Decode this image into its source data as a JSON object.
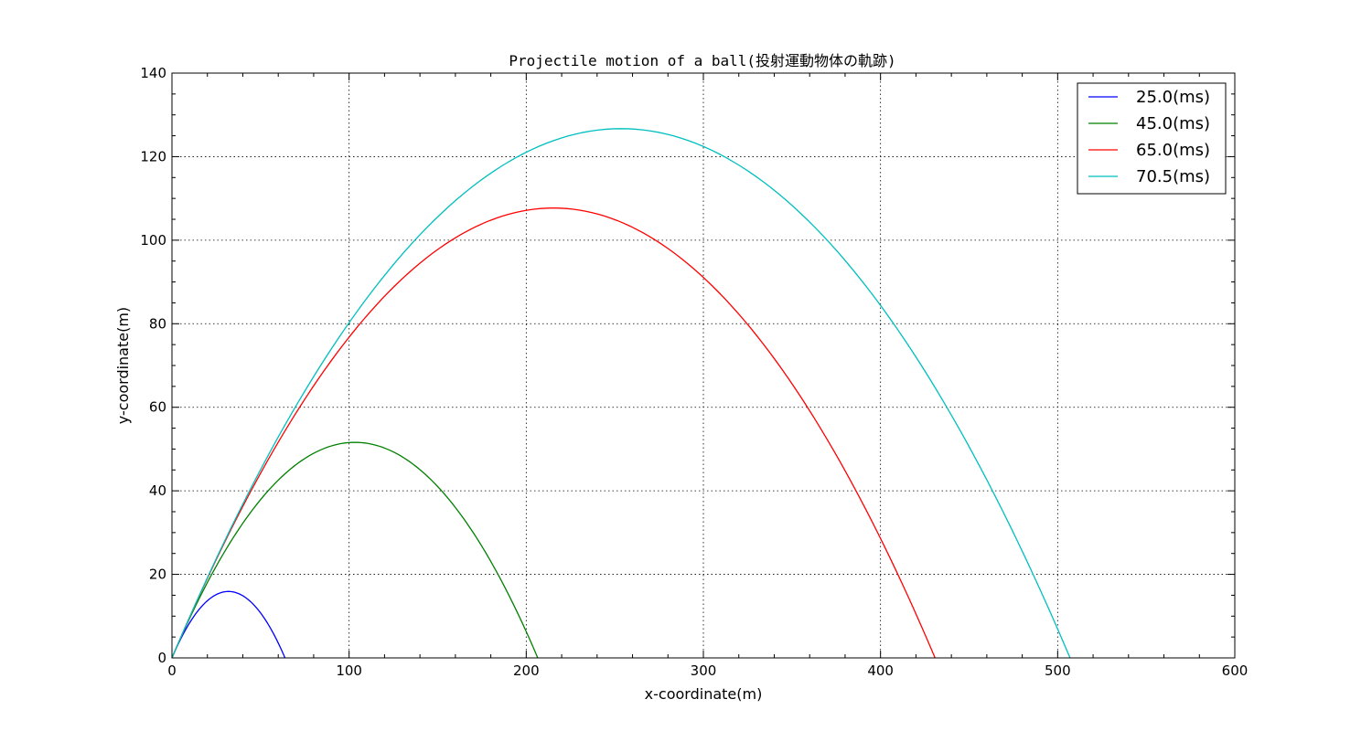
{
  "chart_data": {
    "type": "line",
    "title": "Projectile motion of a ball(投射運動物体の軌跡)",
    "xlabel": "x-coordinate(m)",
    "ylabel": "y-coordinate(m)",
    "xlim": [
      0,
      600
    ],
    "ylim": [
      0,
      140
    ],
    "xticks": [
      "0",
      "100",
      "200",
      "300",
      "400",
      "500",
      "600"
    ],
    "yticks": [
      "0",
      "20",
      "40",
      "60",
      "80",
      "100",
      "120",
      "140"
    ],
    "grid": true,
    "legend_position": "top-right",
    "series": [
      {
        "name": "25.0(ms)",
        "color": "#0000ff",
        "range": 63.8,
        "max_height": 15.9
      },
      {
        "name": "45.0(ms)",
        "color": "#008000",
        "range": 206.5,
        "max_height": 51.6
      },
      {
        "name": "65.0(ms)",
        "color": "#ff0000",
        "range": 430.8,
        "max_height": 107.7
      },
      {
        "name": "70.5(ms)",
        "color": "#00bfbf",
        "range": 507.0,
        "max_height": 126.7
      }
    ]
  }
}
